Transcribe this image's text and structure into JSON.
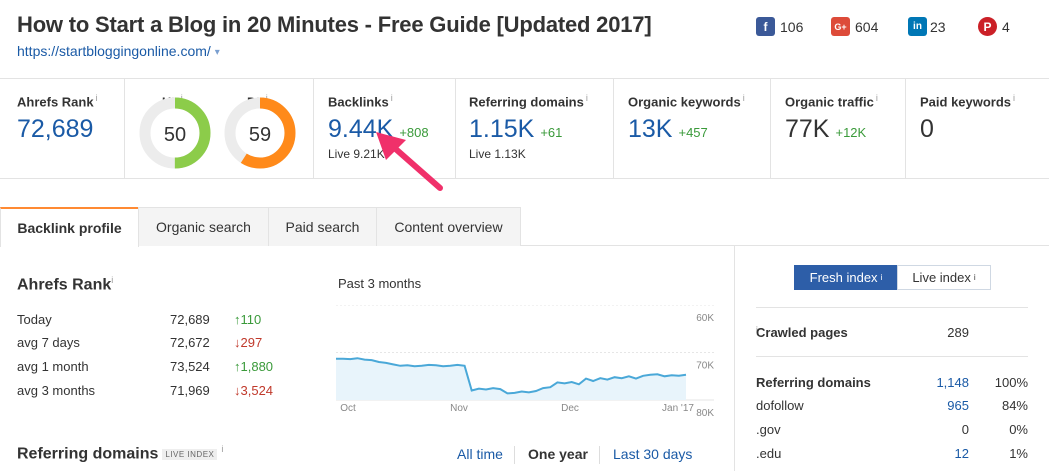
{
  "header": {
    "title": "How to Start a Blog in 20 Minutes - Free Guide [Updated 2017]",
    "url": "https://startbloggingonline.com/",
    "url_caret": "▾",
    "social": [
      {
        "icon": "facebook-icon",
        "glyph": "f",
        "color": "#3b5998",
        "count": "106"
      },
      {
        "icon": "google-plus-icon",
        "glyph": "G+",
        "color": "#dd4b39",
        "count": "604"
      },
      {
        "icon": "linkedin-icon",
        "glyph": "in",
        "color": "#0077b5",
        "count": "23"
      },
      {
        "icon": "pinterest-icon",
        "glyph": "P",
        "color": "#cb2027",
        "count": "4"
      }
    ]
  },
  "metrics": {
    "ahrefs_rank": {
      "label": "Ahrefs Rank",
      "info": "i",
      "value": "72,689"
    },
    "ur": {
      "label": "UR",
      "info": "i",
      "value": "50",
      "score": 50,
      "color": "#8ccc4a"
    },
    "dr": {
      "label": "DR",
      "info": "i",
      "value": "59",
      "score": 59,
      "color": "#ff8a1a"
    },
    "backlinks": {
      "label": "Backlinks",
      "info": "i",
      "value": "9.44K",
      "delta": "+808",
      "sub": "Live 9.21K"
    },
    "referring_domains": {
      "label": "Referring domains",
      "info": "i",
      "value": "1.15K",
      "delta": "+61",
      "sub": "Live 1.13K"
    },
    "organic_keywords": {
      "label": "Organic keywords",
      "info": "i",
      "value": "13K",
      "delta": "+457"
    },
    "organic_traffic": {
      "label": "Organic traffic",
      "info": "i",
      "value": "77K",
      "delta": "+12K"
    },
    "paid_keywords": {
      "label": "Paid keywords",
      "info": "i",
      "value": "0"
    }
  },
  "tabs": [
    "Backlink profile",
    "Organic search",
    "Paid search",
    "Content overview"
  ],
  "ahrefs_rank_section": {
    "title": "Ahrefs Rank",
    "info": "i",
    "rows": [
      {
        "label": "Today",
        "value": "72,689",
        "change": "↑110",
        "dir": "up"
      },
      {
        "label": "avg 7 days",
        "value": "72,672",
        "change": "↓297",
        "dir": "down"
      },
      {
        "label": "avg 1 month",
        "value": "73,524",
        "change": "↑1,880",
        "dir": "up"
      },
      {
        "label": "avg 3 months",
        "value": "71,969",
        "change": "↓3,524",
        "dir": "down"
      }
    ]
  },
  "chart_data": {
    "type": "area",
    "title": "Past 3 months",
    "x_ticks": [
      "Oct",
      "Nov",
      "Dec",
      "Jan '17"
    ],
    "y_ticks": [
      "60K",
      "70K",
      "80K"
    ],
    "ylim": [
      60000,
      80000
    ],
    "y_inverted": true,
    "series": [
      {
        "values": [
          71300,
          71300,
          71400,
          71200,
          71500,
          71600,
          72000,
          72200,
          72500,
          72800,
          72700,
          72900,
          72800,
          72600,
          72700,
          72900,
          72800,
          72600,
          72800,
          78000,
          77600,
          77800,
          77500,
          77700,
          78600,
          78500,
          78200,
          78400,
          78100,
          77500,
          77300,
          76300,
          76500,
          76200,
          76700,
          75500,
          76000,
          75400,
          75700,
          75200,
          75400,
          75000,
          75500,
          74900,
          74700,
          74600,
          75000,
          74800,
          74900,
          74700
        ]
      }
    ]
  },
  "referring_domains_section": {
    "title": "Referring domains",
    "badge": "LIVE INDEX",
    "info": "i",
    "periods": [
      "All time",
      "One year",
      "Last 30 days"
    ],
    "active_period": "One year"
  },
  "right_panel": {
    "toggle_fresh": "Fresh index",
    "toggle_live": "Live index",
    "info": "i",
    "crawled_label": "Crawled pages",
    "crawled_value": "289",
    "rows": [
      {
        "label": "Referring domains",
        "value": "1,148",
        "pct": "100%",
        "bold": true
      },
      {
        "label": "dofollow",
        "value": "965",
        "pct": "84%"
      },
      {
        "label": ".gov",
        "value": "0",
        "pct": "0%"
      },
      {
        "label": ".edu",
        "value": "12",
        "pct": "1%"
      }
    ]
  },
  "colors": {
    "accent": "#1a5aa6",
    "positive": "#3a9a3a",
    "negative": "#c0392b",
    "arrow": "#f0306a",
    "tab_active_border": "#ff8a33"
  }
}
